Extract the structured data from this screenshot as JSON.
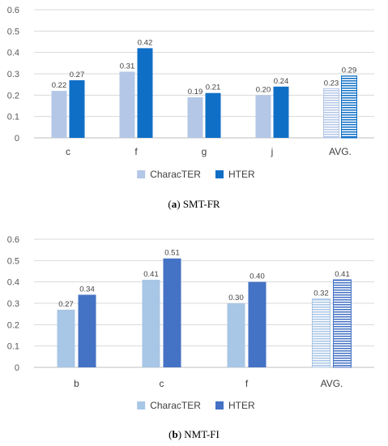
{
  "captions": [
    {
      "letter": "a",
      "text": "SMT-FR"
    },
    {
      "letter": "b",
      "text": "NMT-FI"
    }
  ],
  "chart_data": [
    {
      "type": "bar",
      "categories": [
        "c",
        "f",
        "g",
        "j",
        "AVG."
      ],
      "series": [
        {
          "name": "CharacTER",
          "values": [
            0.22,
            0.31,
            0.19,
            0.2,
            0.23
          ],
          "color": "#b4c7e7"
        },
        {
          "name": "HTER",
          "values": [
            0.27,
            0.42,
            0.21,
            0.24,
            0.29
          ],
          "color": "#0f6fc6"
        }
      ],
      "ylim": [
        0,
        0.6
      ],
      "yticks": [
        "0",
        "0.1",
        "0.2",
        "0.3",
        "0.4",
        "0.5",
        "0.6"
      ],
      "grid": true,
      "legend": "bottom",
      "avg_pattern": "horizontal stripes"
    },
    {
      "type": "bar",
      "categories": [
        "b",
        "c",
        "f",
        "AVG."
      ],
      "series": [
        {
          "name": "CharacTER",
          "values": [
            0.27,
            0.41,
            0.3,
            0.32
          ],
          "color": "#a8c6e6"
        },
        {
          "name": "HTER",
          "values": [
            0.34,
            0.51,
            0.4,
            0.41
          ],
          "color": "#4472c4"
        }
      ],
      "ylim": [
        0,
        0.6
      ],
      "yticks": [
        "0",
        "0.1",
        "0.2",
        "0.3",
        "0.4",
        "0.5",
        "0.6"
      ],
      "grid": true,
      "legend": "bottom",
      "avg_pattern": "horizontal stripes"
    }
  ]
}
